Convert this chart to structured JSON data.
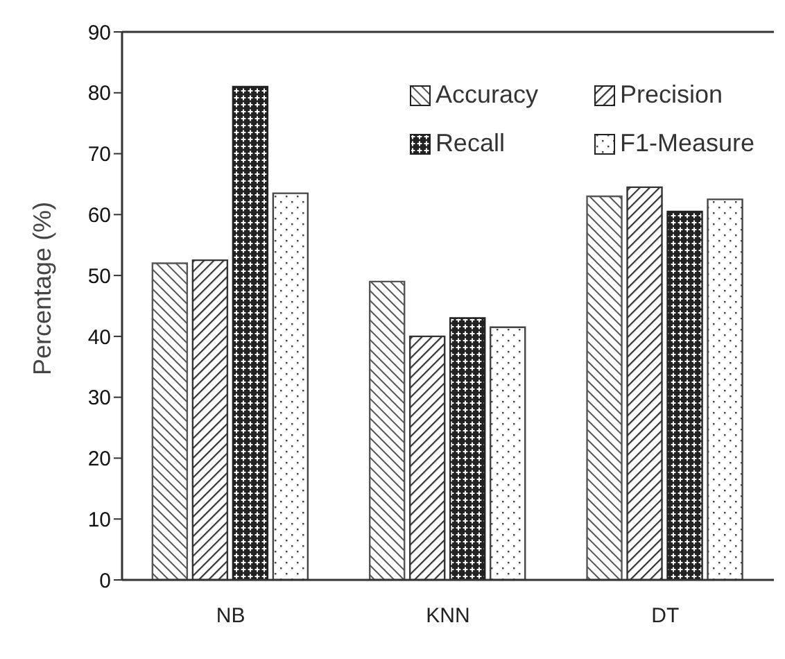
{
  "chart_data": {
    "type": "bar",
    "ylabel": "Percentage (%)",
    "categories": [
      "NB",
      "KNN",
      "DT"
    ],
    "series": [
      {
        "name": "Accuracy",
        "color": "#555555",
        "values": [
          52,
          49,
          63
        ]
      },
      {
        "name": "Precision",
        "color": "#333333",
        "values": [
          52.5,
          40,
          64.5
        ]
      },
      {
        "name": "Recall",
        "color": "#222222",
        "values": [
          81,
          43,
          60.5
        ]
      },
      {
        "name": "F1-Measure",
        "color": "#444444",
        "values": [
          63.5,
          41.5,
          62.5
        ]
      }
    ],
    "ylim": [
      0,
      90
    ],
    "yticks": [
      0,
      10,
      20,
      30,
      40,
      50,
      60,
      70,
      80,
      90
    ],
    "grid": false,
    "legend": "top right"
  }
}
